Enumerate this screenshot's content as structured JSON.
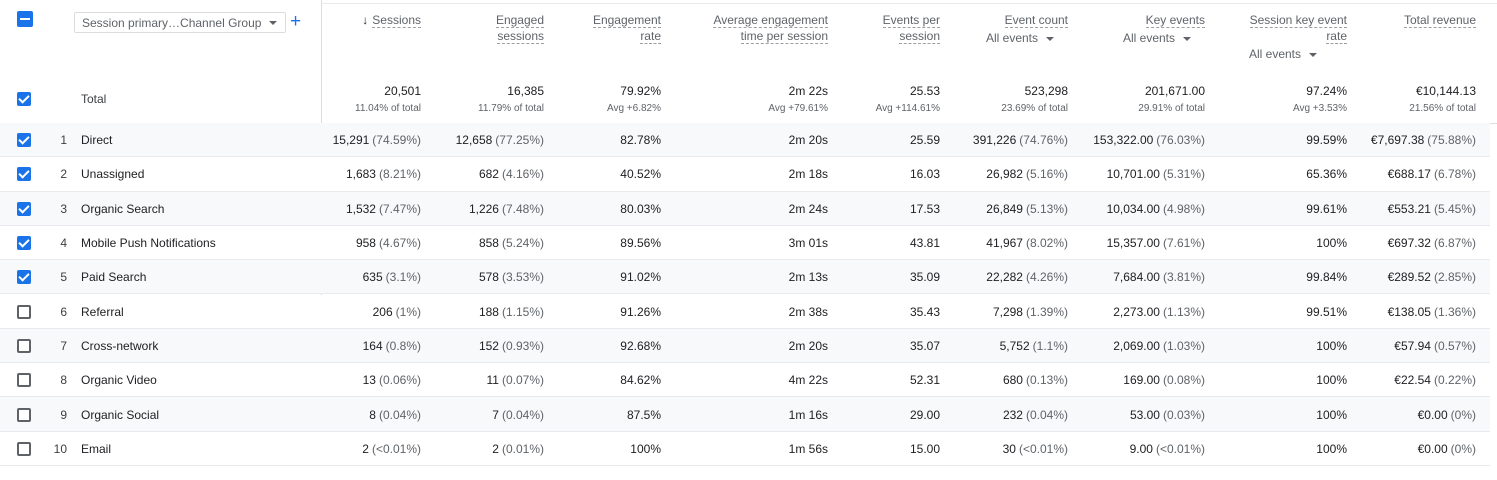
{
  "header": {
    "dimension_selector": "Session primary…Channel Group"
  },
  "columns": [
    {
      "label": "Sessions"
    },
    {
      "label": "Engaged sessions"
    },
    {
      "label": "Engagement rate"
    },
    {
      "label": "Average engagement time per session"
    },
    {
      "label": "Events per session"
    },
    {
      "label": "Event count",
      "sub": "All events"
    },
    {
      "label": "Key events",
      "sub": "All events"
    },
    {
      "label": "Session key event rate",
      "sub": "All events"
    },
    {
      "label": "Total revenue"
    }
  ],
  "total": {
    "label": "Total",
    "checked": true,
    "cells": [
      [
        "20,501",
        "11.04% of total"
      ],
      [
        "16,385",
        "11.79% of total"
      ],
      [
        "79.92%",
        "Avg +6.82%"
      ],
      [
        "2m 22s",
        "Avg +79.61%"
      ],
      [
        "25.53",
        "Avg +114.61%"
      ],
      [
        "523,298",
        "23.69% of total"
      ],
      [
        "201,671.00",
        "29.91% of total"
      ],
      [
        "97.24%",
        "Avg +3.53%"
      ],
      [
        "€10,144.13",
        "21.56% of total"
      ]
    ]
  },
  "rows": [
    {
      "index": 1,
      "name": "Direct",
      "checked": true,
      "cells": [
        [
          "15,291",
          "(74.59%)"
        ],
        [
          "12,658",
          "(77.25%)"
        ],
        [
          "82.78%"
        ],
        [
          "2m 20s"
        ],
        [
          "25.59"
        ],
        [
          "391,226",
          "(74.76%)"
        ],
        [
          "153,322.00",
          "(76.03%)"
        ],
        [
          "99.59%"
        ],
        [
          "€7,697.38",
          "(75.88%)"
        ]
      ]
    },
    {
      "index": 2,
      "name": "Unassigned",
      "checked": true,
      "cells": [
        [
          "1,683",
          "(8.21%)"
        ],
        [
          "682",
          "(4.16%)"
        ],
        [
          "40.52%"
        ],
        [
          "2m 18s"
        ],
        [
          "16.03"
        ],
        [
          "26,982",
          "(5.16%)"
        ],
        [
          "10,701.00",
          "(5.31%)"
        ],
        [
          "65.36%"
        ],
        [
          "€688.17",
          "(6.78%)"
        ]
      ]
    },
    {
      "index": 3,
      "name": "Organic Search",
      "checked": true,
      "cells": [
        [
          "1,532",
          "(7.47%)"
        ],
        [
          "1,226",
          "(7.48%)"
        ],
        [
          "80.03%"
        ],
        [
          "2m 24s"
        ],
        [
          "17.53"
        ],
        [
          "26,849",
          "(5.13%)"
        ],
        [
          "10,034.00",
          "(4.98%)"
        ],
        [
          "99.61%"
        ],
        [
          "€553.21",
          "(5.45%)"
        ]
      ]
    },
    {
      "index": 4,
      "name": "Mobile Push Notifications",
      "checked": true,
      "cells": [
        [
          "958",
          "(4.67%)"
        ],
        [
          "858",
          "(5.24%)"
        ],
        [
          "89.56%"
        ],
        [
          "3m 01s"
        ],
        [
          "43.81"
        ],
        [
          "41,967",
          "(8.02%)"
        ],
        [
          "15,357.00",
          "(7.61%)"
        ],
        [
          "100%"
        ],
        [
          "€697.32",
          "(6.87%)"
        ]
      ]
    },
    {
      "index": 5,
      "name": "Paid Search",
      "checked": true,
      "cells": [
        [
          "635",
          "(3.1%)"
        ],
        [
          "578",
          "(3.53%)"
        ],
        [
          "91.02%"
        ],
        [
          "2m 13s"
        ],
        [
          "35.09"
        ],
        [
          "22,282",
          "(4.26%)"
        ],
        [
          "7,684.00",
          "(3.81%)"
        ],
        [
          "99.84%"
        ],
        [
          "€289.52",
          "(2.85%)"
        ]
      ]
    },
    {
      "index": 6,
      "name": "Referral",
      "checked": false,
      "cells": [
        [
          "206",
          "(1%)"
        ],
        [
          "188",
          "(1.15%)"
        ],
        [
          "91.26%"
        ],
        [
          "2m 38s"
        ],
        [
          "35.43"
        ],
        [
          "7,298",
          "(1.39%)"
        ],
        [
          "2,273.00",
          "(1.13%)"
        ],
        [
          "99.51%"
        ],
        [
          "€138.05",
          "(1.36%)"
        ]
      ]
    },
    {
      "index": 7,
      "name": "Cross-network",
      "checked": false,
      "cells": [
        [
          "164",
          "(0.8%)"
        ],
        [
          "152",
          "(0.93%)"
        ],
        [
          "92.68%"
        ],
        [
          "2m 20s"
        ],
        [
          "35.07"
        ],
        [
          "5,752",
          "(1.1%)"
        ],
        [
          "2,069.00",
          "(1.03%)"
        ],
        [
          "100%"
        ],
        [
          "€57.94",
          "(0.57%)"
        ]
      ]
    },
    {
      "index": 8,
      "name": "Organic Video",
      "checked": false,
      "cells": [
        [
          "13",
          "(0.06%)"
        ],
        [
          "11",
          "(0.07%)"
        ],
        [
          "84.62%"
        ],
        [
          "4m 22s"
        ],
        [
          "52.31"
        ],
        [
          "680",
          "(0.13%)"
        ],
        [
          "169.00",
          "(0.08%)"
        ],
        [
          "100%"
        ],
        [
          "€22.54",
          "(0.22%)"
        ]
      ]
    },
    {
      "index": 9,
      "name": "Organic Social",
      "checked": false,
      "cells": [
        [
          "8",
          "(0.04%)"
        ],
        [
          "7",
          "(0.04%)"
        ],
        [
          "87.5%"
        ],
        [
          "1m 16s"
        ],
        [
          "29.00"
        ],
        [
          "232",
          "(0.04%)"
        ],
        [
          "53.00",
          "(0.03%)"
        ],
        [
          "100%"
        ],
        [
          "€0.00",
          "(0%)"
        ]
      ]
    },
    {
      "index": 10,
      "name": "Email",
      "checked": false,
      "cells": [
        [
          "2",
          "(<0.01%)"
        ],
        [
          "2",
          "(0.01%)"
        ],
        [
          "100%"
        ],
        [
          "1m 56s"
        ],
        [
          "15.00"
        ],
        [
          "30",
          "(<0.01%)"
        ],
        [
          "9.00",
          "(<0.01%)"
        ],
        [
          "100%"
        ],
        [
          "€0.00",
          "(0%)"
        ]
      ]
    }
  ]
}
